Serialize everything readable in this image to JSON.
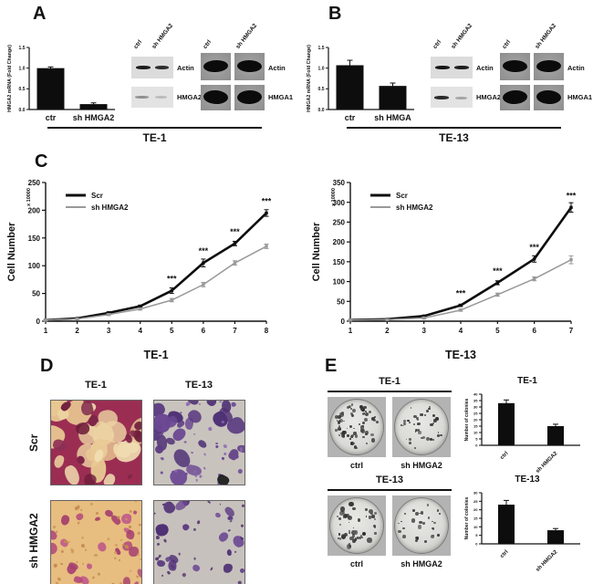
{
  "panel_a": {
    "label": "A",
    "cell_line": "TE-1",
    "blots": {
      "lane_labels": [
        "ctrl",
        "sh HMGA2"
      ],
      "left_rows": [
        "Actin",
        "HMGA2"
      ],
      "right_rows": [
        "Actin",
        "HMGA1"
      ]
    }
  },
  "panel_b": {
    "label": "B",
    "cell_line": "TE-13",
    "blots": {
      "lane_labels": [
        "ctrl",
        "sh HMGA2"
      ],
      "left_rows": [
        "Actin",
        "HMGA2"
      ],
      "right_rows": [
        "Actin",
        "HMGA1"
      ]
    }
  },
  "panel_c": {
    "label": "C"
  },
  "panel_d": {
    "label": "D",
    "col_headers": [
      "TE-1",
      "TE-13"
    ],
    "row_labels": [
      "Scr",
      "sh HMGA2"
    ]
  },
  "panel_e": {
    "label": "E",
    "rows": [
      {
        "title": "TE-1",
        "dish_labels": [
          "ctrl",
          "sh HMGA2"
        ]
      },
      {
        "title": "TE-13",
        "dish_labels": [
          "ctrl",
          "sh HMGA2"
        ]
      }
    ]
  },
  "chart_data": [
    {
      "id": "mrna-te1",
      "type": "bar",
      "categories": [
        "ctr",
        "sh HMGA2"
      ],
      "values": [
        1.0,
        0.13
      ],
      "errors": [
        0.03,
        0.03
      ],
      "yticks": [
        "0.0",
        "0.5",
        "1.0",
        "1.5"
      ],
      "ylim": [
        0,
        1.5
      ],
      "ylabel": "HMGA2 mRNA (Fold Change)"
    },
    {
      "id": "mrna-te13",
      "type": "bar",
      "categories": [
        "ctr",
        "sh HMGA"
      ],
      "values": [
        1.07,
        0.57
      ],
      "errors": [
        0.12,
        0.07
      ],
      "yticks": [
        "0.0",
        "0.5",
        "1.0",
        "1.5"
      ],
      "ylim": [
        0,
        1.5
      ],
      "ylabel": "HMGA2 mRNA (Fold Change)"
    },
    {
      "id": "growth-te1",
      "type": "line",
      "x": [
        1,
        2,
        3,
        4,
        5,
        6,
        7,
        8
      ],
      "series": [
        {
          "name": "Scr",
          "color": "#0d0d0d",
          "width": 2.6,
          "values": [
            2,
            5,
            15,
            27,
            55,
            105,
            140,
            195
          ],
          "errors": [
            1,
            1,
            2,
            2,
            5,
            7,
            4,
            6
          ]
        },
        {
          "name": "sh HMGA2",
          "color": "#999999",
          "width": 1.5,
          "values": [
            2,
            4,
            12,
            22,
            38,
            66,
            105,
            135
          ],
          "errors": [
            1,
            1,
            2,
            2,
            3,
            4,
            4,
            4
          ]
        }
      ],
      "yticks": [
        "0",
        "50",
        "100",
        "150",
        "200",
        "250"
      ],
      "ylim": [
        0,
        250
      ],
      "ylabel": "Cell Number",
      "y_multiplier": "x 10000",
      "xlabel": "TE-1",
      "sig": {
        "marker": "***",
        "at_x": [
          5,
          6,
          7,
          8
        ]
      },
      "legend_position": "top-left"
    },
    {
      "id": "growth-te13",
      "type": "line",
      "x": [
        1,
        2,
        3,
        4,
        5,
        6,
        7
      ],
      "series": [
        {
          "name": "Scr",
          "color": "#0d0d0d",
          "width": 2.6,
          "values": [
            3,
            5,
            13,
            40,
            97,
            157,
            287
          ],
          "errors": [
            1,
            1,
            2,
            3,
            5,
            8,
            12
          ]
        },
        {
          "name": "sh HMGA2",
          "color": "#999999",
          "width": 1.5,
          "values": [
            3,
            4,
            8,
            28,
            67,
            107,
            155
          ],
          "errors": [
            1,
            1,
            2,
            3,
            4,
            5,
            10
          ]
        }
      ],
      "yticks": [
        "0",
        "50",
        "100",
        "150",
        "200",
        "250",
        "300",
        "350"
      ],
      "ylim": [
        0,
        350
      ],
      "ylabel": "Cell Number",
      "y_multiplier": "x 10000",
      "xlabel": "TE-13",
      "sig": {
        "marker": "***",
        "at_x": [
          4,
          5,
          6,
          7
        ]
      },
      "legend_position": "top-left"
    },
    {
      "id": "colonies-te1",
      "type": "bar",
      "title": "TE-1",
      "categories": [
        "ctrl",
        "sh HMGA2"
      ],
      "values": [
        33,
        15
      ],
      "errors": [
        2.5,
        1.5
      ],
      "yticks": [
        "0",
        "5",
        "10",
        "15",
        "20",
        "25",
        "30",
        "35",
        "40"
      ],
      "ylim": [
        0,
        40
      ],
      "ylabel": "Number of colonies"
    },
    {
      "id": "colonies-te13",
      "type": "bar",
      "title": "TE-13",
      "categories": [
        "ctrl",
        "sh HMGA2"
      ],
      "values": [
        23,
        8
      ],
      "errors": [
        2.5,
        1
      ],
      "yticks": [
        "0",
        "5",
        "10",
        "15",
        "20",
        "25",
        "30"
      ],
      "ylim": [
        0,
        30
      ],
      "ylabel": "Number of colonies"
    }
  ]
}
